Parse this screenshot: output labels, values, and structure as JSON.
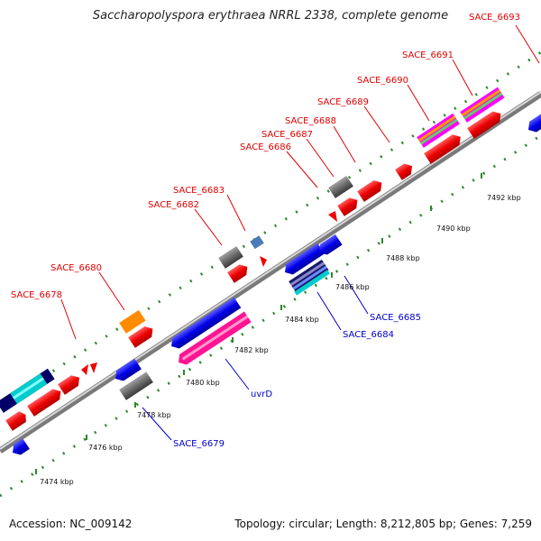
{
  "title": "Saccharopolyspora erythraea NRRL 2338, complete genome",
  "footer": {
    "accession": "Accession: NC_009142",
    "summary": "Topology: circular; Length: 8,212,805 bp; Genes: 7,259"
  },
  "scale_labels": [
    "7474 kbp",
    "7476 kbp",
    "7478 kbp",
    "7480 kbp",
    "7482 kbp",
    "7484 kbp",
    "7486 kbp",
    "7488 kbp",
    "7490 kbp",
    "7492 kbp"
  ],
  "gene_labels_top": [
    "SACE_6678",
    "SACE_6680",
    "SACE_6682",
    "SACE_6683",
    "SACE_6686",
    "SACE_6687",
    "SACE_6688",
    "SACE_6689",
    "SACE_6690",
    "SACE_6691",
    "SACE_6693"
  ],
  "gene_labels_bottom": [
    "SACE_6679",
    "uvrD",
    "SACE_6684",
    "SACE_6685"
  ],
  "colors": {
    "label_top": "#e00000",
    "label_bottom": "#0000c8",
    "backbone": "#9a9a9a",
    "ticks": "#2a8a2a"
  }
}
